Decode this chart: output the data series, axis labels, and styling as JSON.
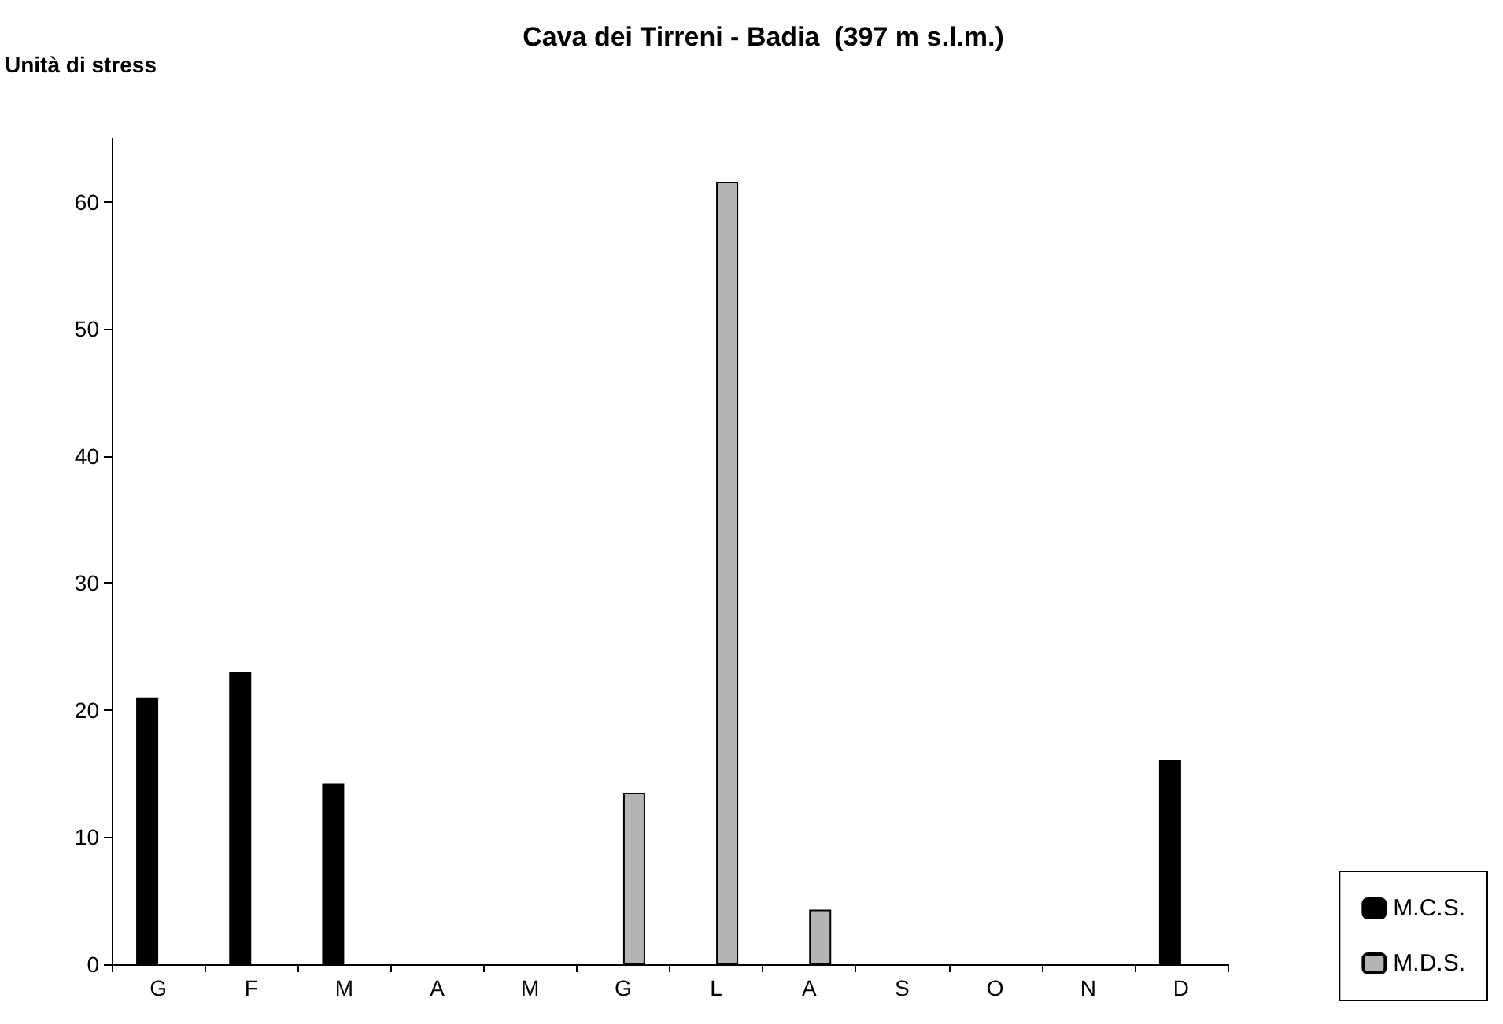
{
  "chart_data": {
    "type": "bar",
    "title": "Cava dei Tirreni - Badia  (397 m s.l.m.)",
    "ylabel": "Unità di stress",
    "categories": [
      "G",
      "F",
      "M",
      "A",
      "M",
      "G",
      "L",
      "A",
      "S",
      "O",
      "N",
      "D"
    ],
    "series": [
      {
        "name": "M.C.S.",
        "color": "#000000",
        "values": [
          21,
          23,
          14.2,
          null,
          null,
          null,
          null,
          null,
          null,
          null,
          null,
          16.1
        ]
      },
      {
        "name": "M.D.S.",
        "color": "#b4b4b4",
        "values": [
          null,
          null,
          null,
          null,
          null,
          13.5,
          61.6,
          4.3,
          null,
          null,
          null,
          null
        ]
      }
    ],
    "ylim": [
      0,
      65
    ],
    "yticks": [
      0,
      10,
      20,
      30,
      40,
      50,
      60
    ],
    "grid": false,
    "legend": "bottom right"
  }
}
